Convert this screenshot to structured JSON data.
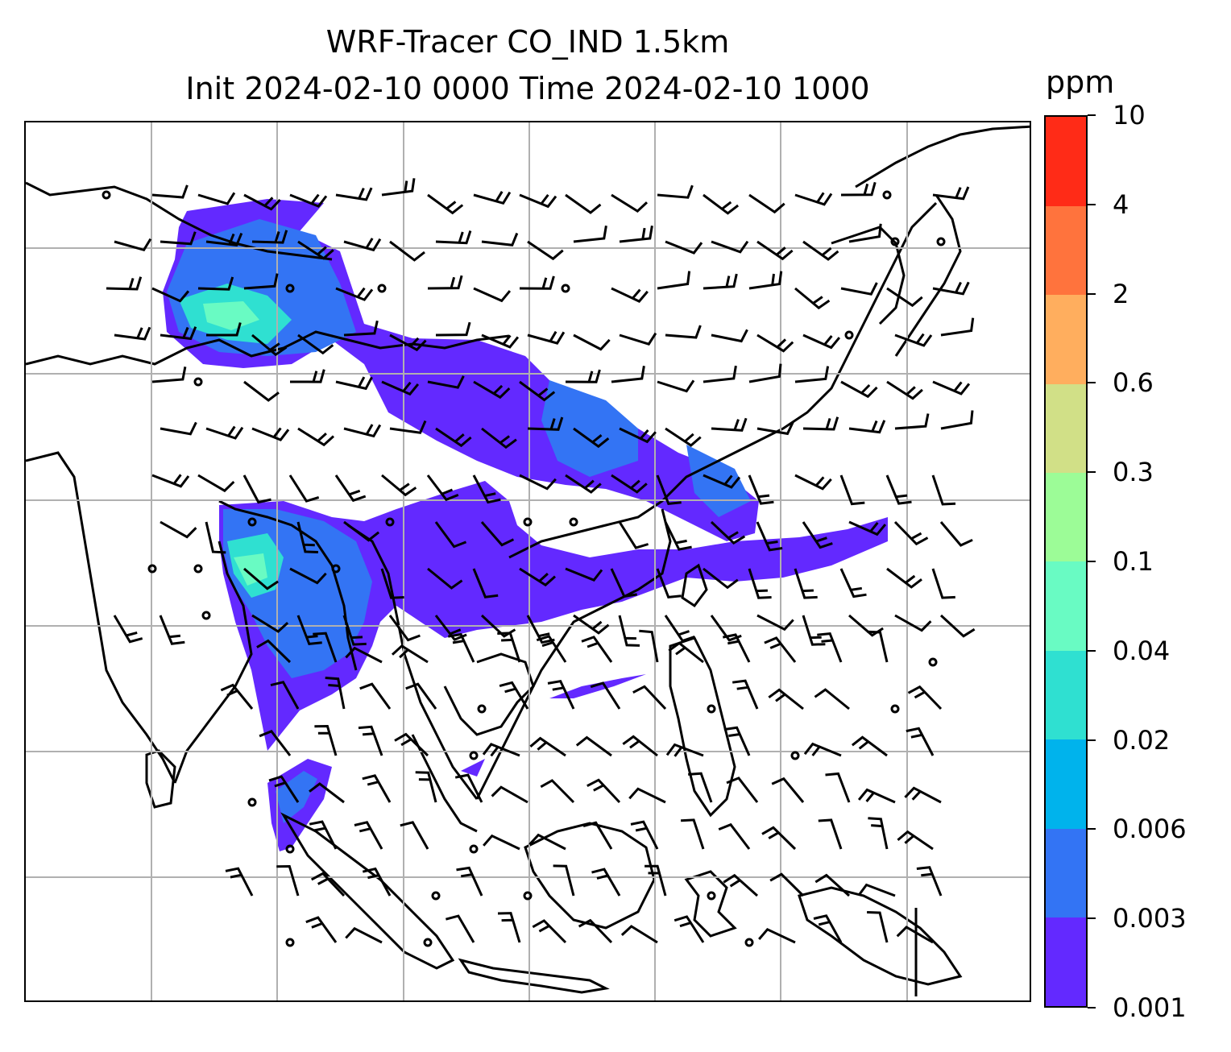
{
  "title": {
    "line1": "WRF-Tracer CO_IND 1.5km",
    "line2": "Init 2024-02-10 0000 Time 2024-02-10 1000"
  },
  "colorbar": {
    "unit": "ppm",
    "levels": [
      "0.001",
      "0.003",
      "0.006",
      "0.02",
      "0.04",
      "0.1",
      "0.3",
      "0.6",
      "2",
      "4",
      "10"
    ],
    "colors": [
      "#6329ff",
      "#3374f4",
      "#00b3ec",
      "#2fe0d1",
      "#69fbc3",
      "#9cfc97",
      "#d1e087",
      "#ffae5e",
      "#ff733d",
      "#ff2b17"
    ]
  },
  "map": {
    "gridlines": true,
    "wind_barbs": true,
    "calm_markers": true,
    "coastlines": true
  }
}
